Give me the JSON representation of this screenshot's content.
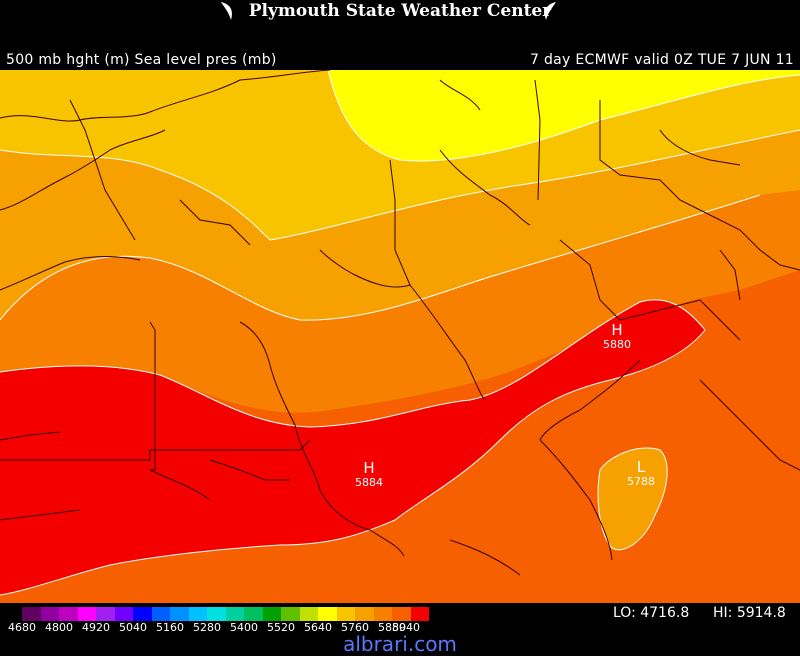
{
  "header": {
    "title": "Plymouth State Weather Center"
  },
  "subtitle": {
    "left": "500 mb hght (m) Sea level pres (mb)",
    "right": "7 day ECMWF valid 0Z TUE 7 JUN 11"
  },
  "colors": {
    "yellow": "#ffff00",
    "yellow_orange": "#f8c400",
    "orange_light": "#f7a100",
    "orange": "#f78000",
    "dark_orange": "#f66000",
    "red": "#f40000",
    "borders": "#3a0000",
    "contour": "#ffffff"
  },
  "markers": [
    {
      "symbol": "H",
      "value": "5880"
    },
    {
      "symbol": "H",
      "value": "5884"
    },
    {
      "symbol": "L",
      "value": "5788"
    }
  ],
  "colorbar": {
    "colors": [
      "#600060",
      "#9000a0",
      "#c000c0",
      "#ff00ff",
      "#a020f0",
      "#7000ff",
      "#0000ff",
      "#0060ff",
      "#0090ff",
      "#00c0ff",
      "#00e0e0",
      "#00d0a0",
      "#00c060",
      "#00a000",
      "#60c000",
      "#c0e000",
      "#ffff00",
      "#f8c400",
      "#f7a100",
      "#f78000",
      "#f66000",
      "#f40000"
    ],
    "labels": [
      "4680",
      "4800",
      "4920",
      "5040",
      "5160",
      "5280",
      "5400",
      "5520",
      "5640",
      "5760",
      "5880",
      "5940"
    ]
  },
  "stats": {
    "lo": "LO: 4716.8",
    "hi": "HI: 5914.8"
  },
  "watermark": "albrari.com"
}
